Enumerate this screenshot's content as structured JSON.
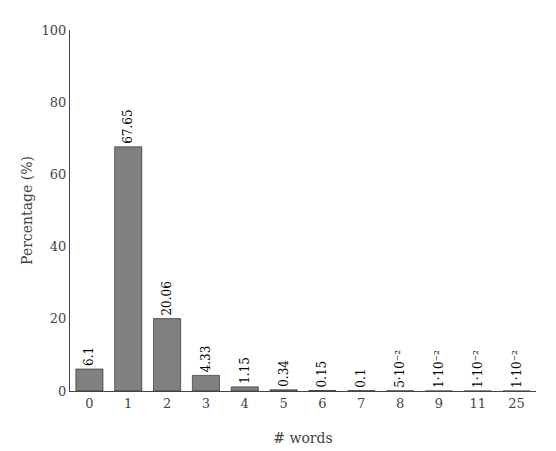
{
  "chart_data": {
    "type": "bar",
    "categories": [
      "0",
      "1",
      "2",
      "3",
      "4",
      "5",
      "6",
      "7",
      "8",
      "9",
      "11",
      "25"
    ],
    "values": [
      6.1,
      67.65,
      20.06,
      4.33,
      1.15,
      0.34,
      0.15,
      0.1,
      0.05,
      0.01,
      0.01,
      0.01
    ],
    "value_labels": [
      "6.1",
      "67.65",
      "20.06",
      "4.33",
      "1.15",
      "0.34",
      "0.15",
      "0.1",
      "5·10⁻²",
      "1·10⁻²",
      "1·10⁻²",
      "1·10⁻²"
    ],
    "data_labels": true,
    "color": "#808080",
    "xlabel": "# words",
    "ylabel": "Percentage (%)",
    "ylim": [
      0,
      100
    ],
    "yticks": [
      0,
      20,
      40,
      60,
      80,
      100
    ],
    "grid": false
  }
}
